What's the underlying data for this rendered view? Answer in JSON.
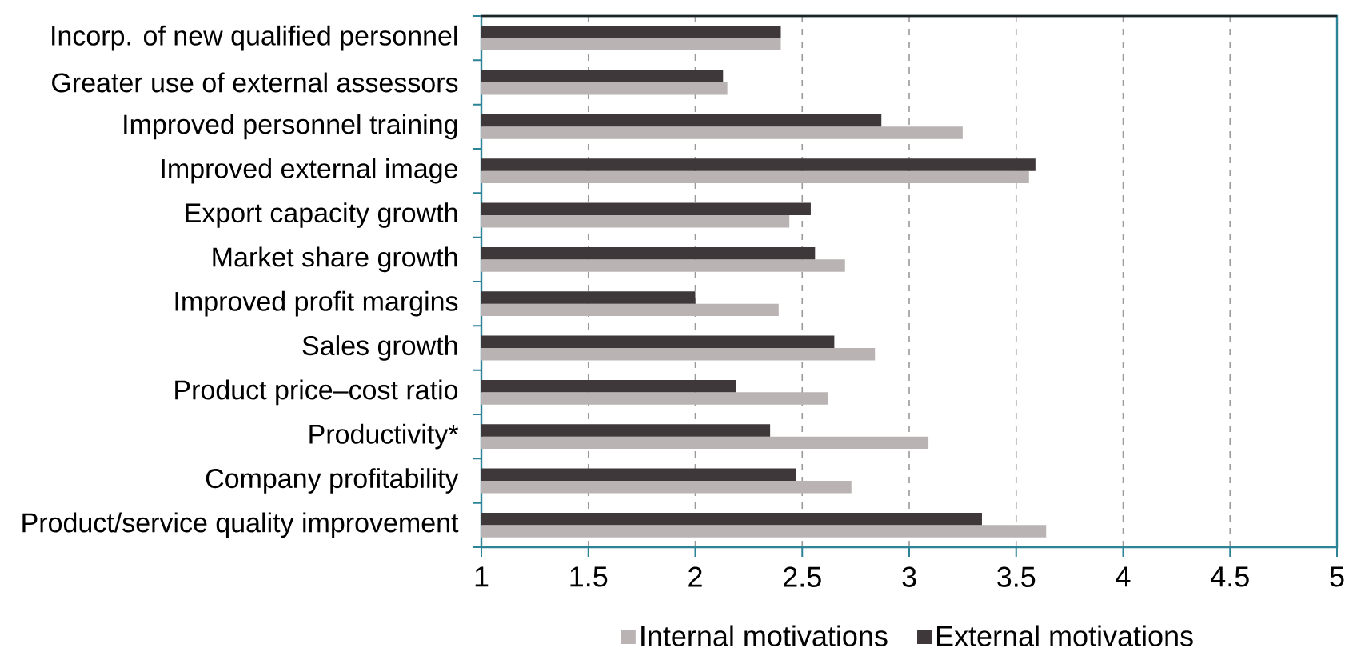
{
  "chart_data": {
    "type": "bar",
    "orientation": "horizontal",
    "categories": [
      "Incorp. of new qualified personnel",
      "Greater use of external assessors",
      "Improved personnel training",
      "Improved external image",
      "Export capacity growth",
      "Market share growth",
      "Improved profit margins",
      "Sales growth",
      "Product price–cost ratio",
      "Productivity*",
      "Company profitability",
      "Product/service quality improvement"
    ],
    "series": [
      {
        "name": "Internal motivations",
        "color": "#bab3b3",
        "values": [
          2.4,
          2.15,
          3.25,
          3.56,
          2.44,
          2.7,
          2.39,
          2.84,
          2.62,
          3.09,
          2.73,
          3.64
        ]
      },
      {
        "name": "External motivations",
        "color": "#3e383a",
        "values": [
          2.4,
          2.13,
          2.87,
          3.59,
          2.54,
          2.56,
          2.0,
          2.65,
          2.19,
          2.35,
          2.47,
          3.34
        ]
      }
    ],
    "xlim": [
      1,
      5
    ],
    "xticks": [
      1,
      1.5,
      2,
      2.5,
      3,
      3.5,
      4,
      4.5,
      5
    ],
    "grid": "x",
    "legend": "bottom"
  }
}
